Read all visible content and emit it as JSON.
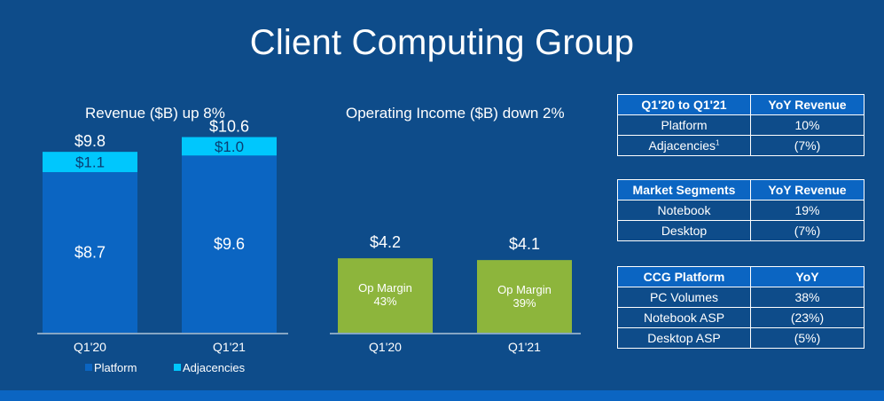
{
  "title": "Client Computing Group",
  "colors": {
    "background": "#0e4c8a",
    "platform": "#0b65c2",
    "adjacencies": "#00c7fd",
    "income": "#8db53c",
    "band": "#0b65c2"
  },
  "chart_data": [
    {
      "type": "bar",
      "stacked": true,
      "title": "Revenue ($B) up 8%",
      "categories": [
        "Q1'20",
        "Q1'21"
      ],
      "series": [
        {
          "name": "Platform",
          "values": [
            8.7,
            9.6
          ],
          "labels": [
            "$8.7",
            "$9.6"
          ]
        },
        {
          "name": "Adjacencies",
          "values": [
            1.1,
            1.0
          ],
          "labels": [
            "$1.1",
            "$1.0"
          ]
        }
      ],
      "totals": [
        "$9.8",
        "$10.6"
      ],
      "legend": [
        "Platform",
        "Adjacencies"
      ],
      "ylim": [
        0,
        11
      ]
    },
    {
      "type": "bar",
      "title": "Operating Income ($B) down 2%",
      "categories": [
        "Q1'20",
        "Q1'21"
      ],
      "values": [
        4.2,
        4.1
      ],
      "value_labels": [
        "$4.2",
        "$4.1"
      ],
      "inner_labels": [
        [
          "Op Margin",
          "43%"
        ],
        [
          "Op Margin",
          "39%"
        ]
      ],
      "ylim": [
        0,
        11
      ]
    }
  ],
  "tables": [
    {
      "header": [
        "Q1'20 to Q1'21",
        "YoY Revenue"
      ],
      "rows": [
        [
          "Platform",
          "10%"
        ],
        [
          "Adjacencies",
          "(7%)"
        ]
      ],
      "footnote_row": 1,
      "footnote": "1"
    },
    {
      "header": [
        "Market Segments",
        "YoY Revenue"
      ],
      "rows": [
        [
          "Notebook",
          "19%"
        ],
        [
          "Desktop",
          "(7%)"
        ]
      ]
    },
    {
      "header": [
        "CCG Platform",
        "YoY"
      ],
      "rows": [
        [
          "PC Volumes",
          "38%"
        ],
        [
          "Notebook ASP",
          "(23%)"
        ],
        [
          "Desktop ASP",
          "(5%)"
        ]
      ]
    }
  ]
}
